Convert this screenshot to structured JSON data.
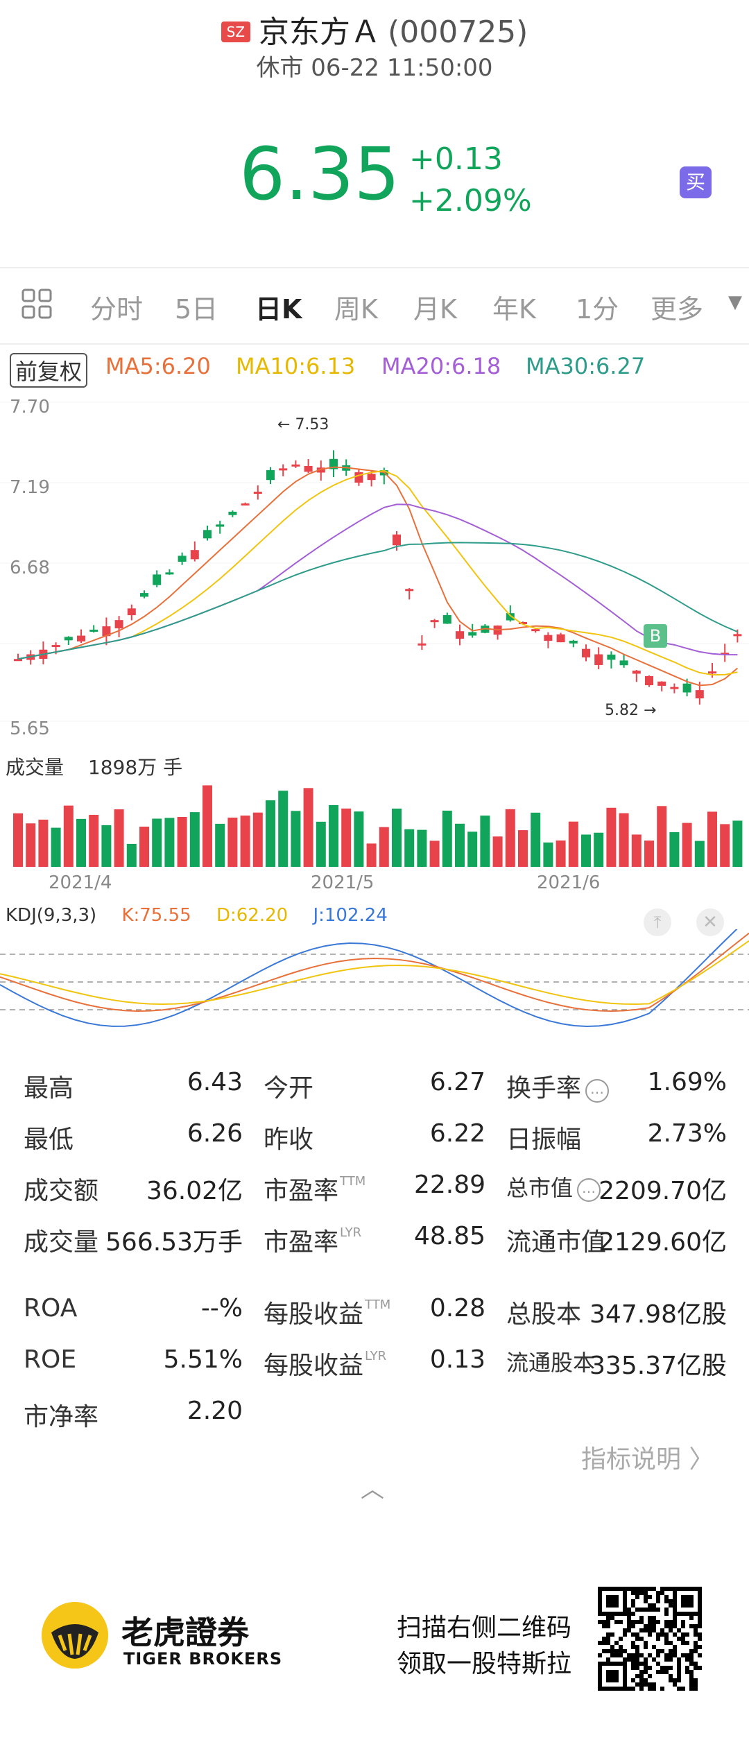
{
  "header": {
    "exchange_badge": "SZ",
    "name": "京东方Ａ",
    "code": "(000725)",
    "status": "休市 06-22 11:50:00"
  },
  "quote": {
    "price": "6.35",
    "change": "+0.13",
    "change_pct": "+2.09%",
    "buy_icon_label": "买",
    "color_up": "#10a55a"
  },
  "tabs": [
    {
      "label": "分时",
      "active": false
    },
    {
      "label": "5日",
      "active": false
    },
    {
      "label": "日K",
      "active": true
    },
    {
      "label": "周K",
      "active": false
    },
    {
      "label": "月K",
      "active": false
    },
    {
      "label": "年K",
      "active": false
    },
    {
      "label": "1分",
      "active": false
    },
    {
      "label": "更多",
      "active": false
    }
  ],
  "ma_row": {
    "adjust_label": "前复权",
    "ma5": "MA5:6.20",
    "ma10": "MA10:6.13",
    "ma20": "MA20:6.18",
    "ma30": "MA30:6.27",
    "colors": {
      "ma5": "#e8703a",
      "ma10": "#f1c40f",
      "ma20": "#a45ed6",
      "ma30": "#2e9c8a"
    }
  },
  "price_chart": {
    "y_labels": [
      "7.70",
      "7.19",
      "6.68",
      "5.65"
    ],
    "high_marker": "7.53",
    "low_marker": "5.82",
    "b_marker": "B"
  },
  "volume": {
    "label": "成交量",
    "value": "1898万 手"
  },
  "dates": [
    "2021/4",
    "2021/5",
    "2021/6"
  ],
  "kdj": {
    "name": "KDJ(9,3,3)",
    "k": "K:75.55",
    "d": "D:62.20",
    "j": "J:102.24",
    "colors": {
      "k": "#e8703a",
      "d": "#f1c40f",
      "j": "#3a78d8"
    }
  },
  "stats": {
    "rows": [
      [
        {
          "l": "最高",
          "v": "6.43"
        },
        {
          "l": "今开",
          "v": "6.27"
        },
        {
          "l": "换手率",
          "v": "1.69%",
          "info": true
        }
      ],
      [
        {
          "l": "最低",
          "v": "6.26"
        },
        {
          "l": "昨收",
          "v": "6.22"
        },
        {
          "l": "日振幅",
          "v": "2.73%"
        }
      ],
      [
        {
          "l": "成交额",
          "v": "36.02亿"
        },
        {
          "l": "市盈率",
          "tag": "TTM",
          "v": "22.89"
        },
        {
          "l": "总市值",
          "v": "2209.70亿",
          "info": true,
          "small": true
        }
      ],
      [
        {
          "l": "成交量",
          "v": "566.53万手"
        },
        {
          "l": "市盈率",
          "tag": "LYR",
          "v": "48.85"
        },
        {
          "l": "流通市值",
          "v": "2129.60亿"
        }
      ],
      [
        {
          "l": "ROA",
          "v": "--%"
        },
        {
          "l": "每股收益",
          "tag": "TTM",
          "v": "0.28"
        },
        {
          "l": "总股本",
          "v": "347.98亿股"
        }
      ],
      [
        {
          "l": "ROE",
          "v": "5.51%"
        },
        {
          "l": "每股收益",
          "tag": "LYR",
          "v": "0.13"
        },
        {
          "l": "流通股本",
          "v": "335.37亿股",
          "small": true
        }
      ],
      [
        {
          "l": "市净率",
          "v": "2.20"
        }
      ]
    ]
  },
  "indicator_link": "指标说明 〉",
  "footer": {
    "brand_cn": "老虎證券",
    "brand_en": "TIGER BROKERS",
    "scan_line1": "扫描右侧二维码",
    "scan_line2": "领取一股特斯拉"
  }
}
